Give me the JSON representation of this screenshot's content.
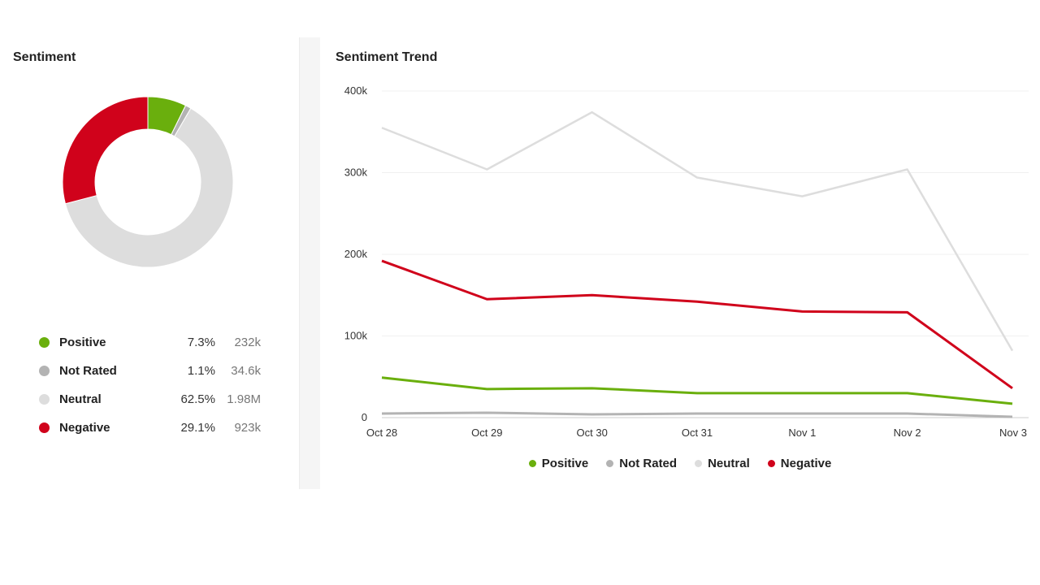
{
  "left": {
    "title": "Sentiment",
    "legend": [
      {
        "name": "Positive",
        "pct": "7.3%",
        "count": "232k",
        "color": "#6aaf0d"
      },
      {
        "name": "Not Rated",
        "pct": "1.1%",
        "count": "34.6k",
        "color": "#b3b3b3"
      },
      {
        "name": "Neutral",
        "pct": "62.5%",
        "count": "1.98M",
        "color": "#dddddd"
      },
      {
        "name": "Negative",
        "pct": "29.1%",
        "count": "923k",
        "color": "#d0021b"
      }
    ]
  },
  "right": {
    "title": "Sentiment Trend"
  },
  "chart_data": [
    {
      "type": "pie",
      "donut": true,
      "labels": [
        "Positive",
        "Not Rated",
        "Neutral",
        "Negative"
      ],
      "values": [
        7.3,
        1.1,
        62.5,
        29.1
      ],
      "colors": [
        "#6aaf0d",
        "#b3b3b3",
        "#dddddd",
        "#d0021b"
      ]
    },
    {
      "type": "line",
      "title": "Sentiment Trend",
      "categories": [
        "Oct 28",
        "Oct 29",
        "Oct 30",
        "Oct 31",
        "Nov 1",
        "Nov 2",
        "Nov 3"
      ],
      "ylim": [
        0,
        400000
      ],
      "yticks": [
        0,
        100000,
        200000,
        300000,
        400000
      ],
      "ytick_labels": [
        "0",
        "100k",
        "200k",
        "300k",
        "400k"
      ],
      "grid": true,
      "legend": "bottom",
      "series": [
        {
          "name": "Positive",
          "color": "#6aaf0d",
          "values": [
            49000,
            35000,
            36000,
            30000,
            30000,
            30000,
            17000
          ]
        },
        {
          "name": "Not Rated",
          "color": "#b3b3b3",
          "values": [
            5000,
            6000,
            4000,
            5000,
            5000,
            5000,
            1000
          ]
        },
        {
          "name": "Neutral",
          "color": "#dddddd",
          "values": [
            355000,
            304000,
            374000,
            294000,
            271000,
            304000,
            82000
          ]
        },
        {
          "name": "Negative",
          "color": "#d0021b",
          "values": [
            192000,
            145000,
            150000,
            142000,
            130000,
            129000,
            36000
          ]
        }
      ]
    }
  ]
}
